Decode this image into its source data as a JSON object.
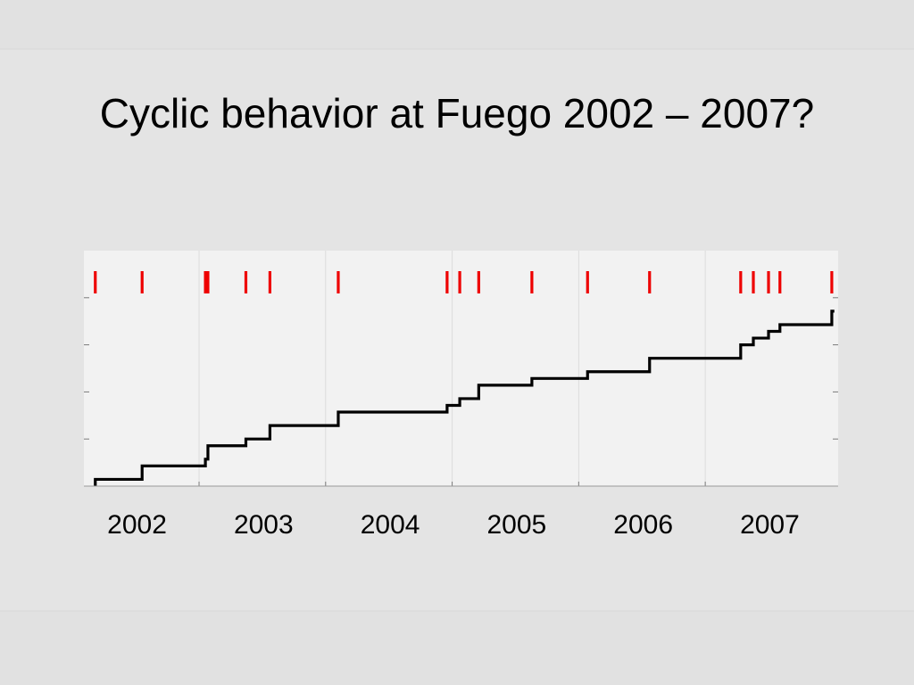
{
  "slide": {
    "title": "Cyclic behavior at Fuego 2002 – 2007?"
  },
  "chart_data": {
    "type": "line",
    "title": "",
    "xlabel": "",
    "ylabel": "",
    "xlim": [
      2001.49,
      2007.45
    ],
    "ylim": [
      0,
      35
    ],
    "x_tick_labels": [
      "2002",
      "2003",
      "2004",
      "2005",
      "2006",
      "2007"
    ],
    "x_tick_label_positions": [
      2001.91,
      2002.91,
      2003.91,
      2004.91,
      2005.91,
      2006.91
    ],
    "x_gridlines": [
      2002.4,
      2003.4,
      2004.4,
      2005.4,
      2006.4
    ],
    "grid": true,
    "event_color": "#ee0000",
    "line_color": "#000000",
    "events": [
      2001.58,
      2001.95,
      2002.45,
      2002.47,
      2002.77,
      2002.96,
      2003.5,
      2004.36,
      2004.46,
      2004.61,
      2005.03,
      2005.47,
      2005.96,
      2006.68,
      2006.78,
      2006.9,
      2006.99,
      2007.4
    ],
    "series": [
      {
        "type": "step",
        "x": [
          2001.58,
          2001.95,
          2002.45,
          2002.47,
          2002.77,
          2002.96,
          2003.5,
          2004.36,
          2004.46,
          2004.61,
          2005.03,
          2005.47,
          2005.96,
          2006.68,
          2006.78,
          2006.9,
          2006.99,
          2007.4,
          2007.42
        ],
        "y": [
          1,
          3,
          4,
          6,
          7,
          9,
          11,
          12,
          13,
          15,
          16,
          17,
          19,
          21,
          22,
          23,
          24,
          26,
          26
        ]
      }
    ]
  }
}
